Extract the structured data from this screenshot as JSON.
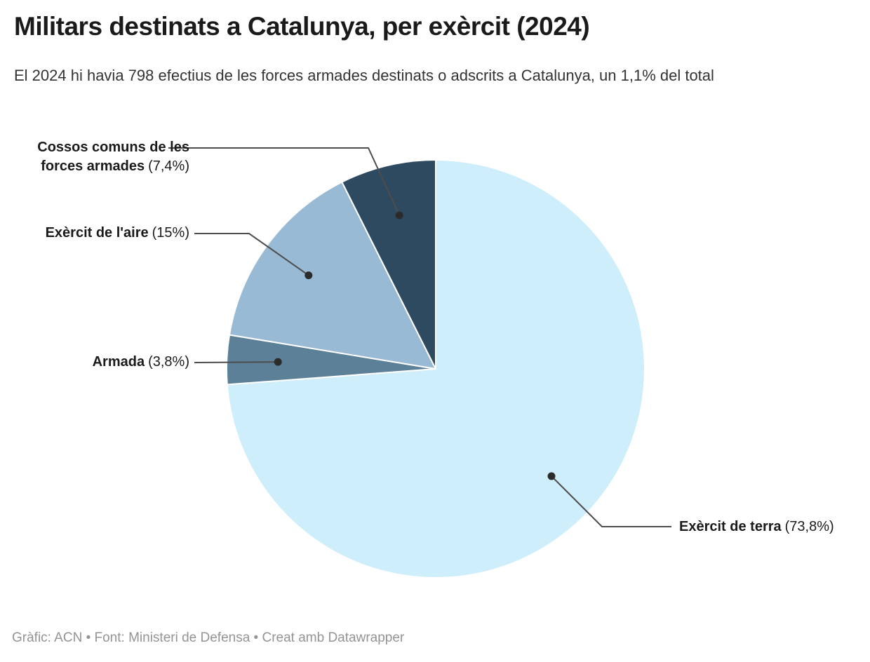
{
  "header": {
    "title": "Militars destinats a Catalunya, per exèrcit (2024)",
    "subtitle": "El 2024 hi havia 798 efectius de les forces armades destinats o adscrits a Catalunya, un 1,1% del total"
  },
  "footer": {
    "byline": "Gràfic: ACN • Font: Ministeri de Defensa • Creat amb Datawrapper"
  },
  "chart_data": {
    "type": "pie",
    "title": "Militars destinats a Catalunya, per exèrcit (2024)",
    "unit": "%",
    "direction": "clockwise",
    "start_angle_deg": 0,
    "legend": "none",
    "slices": [
      {
        "key": "terra",
        "name": "Exèrcit de terra",
        "value": 73.8,
        "pct_label": "(73,8%)",
        "color": "#CFEEFB"
      },
      {
        "key": "armada",
        "name": "Armada",
        "value": 3.8,
        "pct_label": "(3,8%)",
        "color": "#5D8099"
      },
      {
        "key": "aire",
        "name": "Exèrcit de l'aire",
        "value": 15,
        "pct_label": "(15%)",
        "color": "#99BAD4"
      },
      {
        "key": "cossos",
        "name": "Cossos comuns de les forces armades",
        "name_line1": "Cossos comuns de les",
        "name_line2": "forces armades",
        "value": 7.4,
        "pct_label": "(7,4%)",
        "color": "#2E4A61"
      }
    ]
  }
}
